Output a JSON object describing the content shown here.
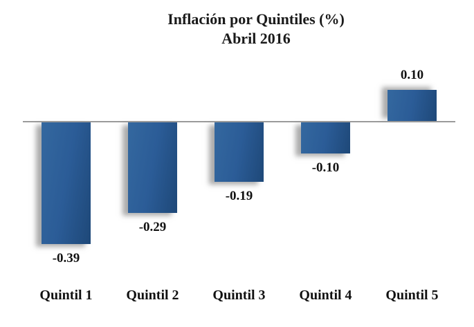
{
  "title": {
    "line1": "Inflación por Quintiles (%)",
    "line2": "Abril 2016"
  },
  "chart_data": {
    "type": "bar",
    "title": "Inflación por Quintiles (%)",
    "subtitle": "Abril 2016",
    "categories": [
      "Quintil 1",
      "Quintil 2",
      "Quintil 3",
      "Quintil 4",
      "Quintil 5"
    ],
    "values": [
      -0.39,
      -0.29,
      -0.19,
      -0.1,
      0.1
    ],
    "value_labels": [
      "-0.39",
      "-0.29",
      "-0.19",
      "-0.10",
      "0.10"
    ],
    "xlabel": "",
    "ylabel": "",
    "ylim": [
      -0.45,
      0.15
    ],
    "grid": false,
    "legend": false,
    "bar_color": "#2B5C97",
    "bar_color_light": "#34689F",
    "bar_color_dark": "#1E4878",
    "axis_color": "#9B9B9B",
    "text_color": "#111111",
    "background": "#FFFFFF"
  }
}
